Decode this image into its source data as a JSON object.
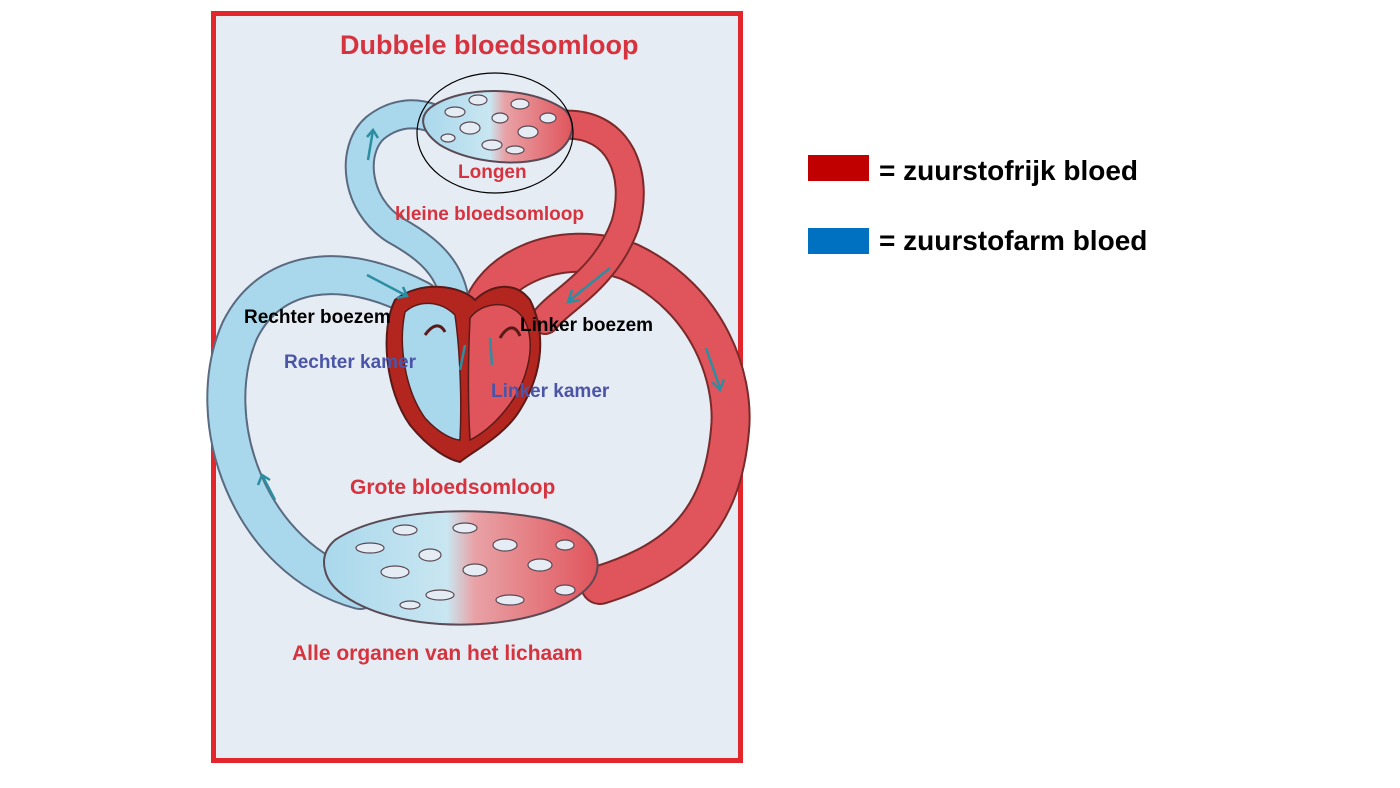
{
  "diagram": {
    "title": "Dubbele bloedsomloop",
    "lungs_label": "Longen",
    "small_circulation_label": "kleine bloedsomloop",
    "right_atrium_label": "Rechter boezem",
    "left_atrium_label": "Linker boezem",
    "right_ventricle_label": "Rechter kamer",
    "left_ventricle_label": "Linker kamer",
    "large_circulation_label": "Grote bloedsomloop",
    "organs_label": "Alle organen van het lichaam"
  },
  "legend": {
    "items": [
      {
        "label": "= zuurstofrijk bloed",
        "color": "#c00000"
      },
      {
        "label": "= zuurstofarm bloed",
        "color": "#0070c0"
      }
    ]
  },
  "colors": {
    "frame": "#e3262b",
    "oxygen_rich_vessel": "#e0555c",
    "oxygen_poor_vessel": "#a9d8ec",
    "heart_muscle": "#b2261f"
  }
}
